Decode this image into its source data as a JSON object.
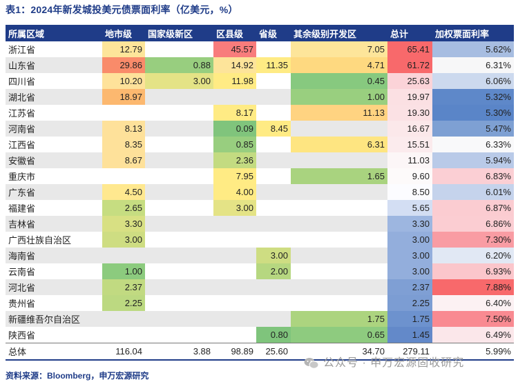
{
  "title": "表1：2024年新发城投美元债票面利率（亿美元，%）",
  "columns": [
    "所属区域",
    "地市级",
    "国家级新区",
    "区县级",
    "省级",
    "其余级别开发区",
    "总计",
    "加权票面利率"
  ],
  "rows": [
    {
      "cells": [
        "浙江省",
        "12.79",
        "",
        "45.57",
        "",
        "7.05",
        "65.41",
        "5.62%"
      ],
      "bg": [
        "",
        "#fde59a",
        "",
        "#f87c7c",
        "",
        "#fde59a",
        "#f8696b",
        "#a7bde1"
      ]
    },
    {
      "cells": [
        "山东省",
        "29.86",
        "0.88",
        "14.92",
        "11.35",
        "4.71",
        "61.72",
        "6.31%"
      ],
      "bg": [
        "",
        "#f98b6a",
        "#98ce7f",
        "#fde49a",
        "#ffeb84",
        "#fed980",
        "#f8696b",
        "#f7f7f8"
      ]
    },
    {
      "cells": [
        "四川省",
        "10.20",
        "3.00",
        "11.98",
        "",
        "0.45",
        "25.63",
        "6.06%"
      ],
      "bg": [
        "",
        "#fee29a",
        "#e4e386",
        "#ffeb84",
        "",
        "#87c97f",
        "#fbd3d8",
        "#ccd9ee"
      ]
    },
    {
      "cells": [
        "湖北省",
        "18.97",
        "",
        "",
        "",
        "1.00",
        "19.97",
        "5.32%"
      ],
      "bg": [
        "",
        "#fcb86f",
        "",
        "",
        "",
        "#99cf7f",
        "#fbe0e3",
        "#5e88c9"
      ]
    },
    {
      "cells": [
        "江苏省",
        "",
        "",
        "8.17",
        "",
        "11.13",
        "19.30",
        "5.30%"
      ],
      "bg": [
        "",
        "",
        "",
        "#ffeb84",
        "",
        "#ffd381",
        "#fbe1e4",
        "#5a85c8"
      ]
    },
    {
      "cells": [
        "河南省",
        "8.13",
        "",
        "0.09",
        "8.45",
        "",
        "16.67",
        "5.47%"
      ],
      "bg": [
        "",
        "#fee19a",
        "",
        "#80c47c",
        "#ffeb84",
        "",
        "#fbe8ea",
        "#7ea0d3"
      ]
    },
    {
      "cells": [
        "江西省",
        "8.35",
        "",
        "0.85",
        "",
        "6.31",
        "15.51",
        "6.33%"
      ],
      "bg": [
        "",
        "#fee19a",
        "",
        "#98ce7f",
        "",
        "#fee581",
        "#fbebed",
        "#f9f9fa"
      ]
    },
    {
      "cells": [
        "安徽省",
        "8.67",
        "",
        "2.36",
        "",
        "",
        "11.03",
        "5.94%"
      ],
      "bg": [
        "",
        "#fee19a",
        "",
        "#c3db81",
        "",
        "",
        "#fcf6f7",
        "#b9cae8"
      ]
    },
    {
      "cells": [
        "重庆市",
        "",
        "",
        "7.95",
        "",
        "1.65",
        "9.60",
        "6.83%"
      ],
      "bg": [
        "",
        "",
        "",
        "#ffeb84",
        "",
        "#a9d37f",
        "#fdfafa",
        "#fbcfd4"
      ]
    },
    {
      "cells": [
        "广东省",
        "4.50",
        "",
        "4.00",
        "",
        "",
        "8.50",
        "6.01%"
      ],
      "bg": [
        "",
        "#ffe88f",
        "",
        "#ffeb84",
        "",
        "",
        "#fcfcff",
        "#c5d3ec"
      ]
    },
    {
      "cells": [
        "福建省",
        "2.65",
        "",
        "3.00",
        "",
        "",
        "5.65",
        "6.87%"
      ],
      "bg": [
        "",
        "#c6dd81",
        "",
        "#e4e386",
        "",
        "",
        "#d3def3",
        "#fbccd1"
      ]
    },
    {
      "cells": [
        "吉林省",
        "3.30",
        "",
        "",
        "",
        "",
        "3.30",
        "6.86%"
      ],
      "bg": [
        "",
        "#d8e083",
        "",
        "",
        "",
        "",
        "#9db6e0",
        "#fbcdd2"
      ]
    },
    {
      "cells": [
        "广西壮族自治区",
        "3.00",
        "",
        "",
        "",
        "",
        "3.00",
        "7.30%"
      ],
      "bg": [
        "",
        "#cedd82",
        "",
        "",
        "",
        "",
        "#93aedc",
        "#f99ca3"
      ]
    },
    {
      "cells": [
        "海南省",
        "",
        "",
        "",
        "3.00",
        "",
        "3.00",
        "6.20%"
      ],
      "bg": [
        "",
        "",
        "",
        "",
        "#cedd82",
        "",
        "#93aedc",
        "#e1e8f4"
      ]
    },
    {
      "cells": [
        "云南省",
        "1.00",
        "",
        "",
        "2.00",
        "",
        "3.00",
        "6.93%"
      ],
      "bg": [
        "",
        "#8ccb7e",
        "",
        "",
        "#b6d780",
        "",
        "#93aedc",
        "#fbc6cb"
      ]
    },
    {
      "cells": [
        "河北省",
        "2.37",
        "",
        "",
        "",
        "",
        "2.37",
        "7.88%"
      ],
      "bg": [
        "",
        "#c1da81",
        "",
        "",
        "",
        "",
        "#7f9fd4",
        "#f8696b"
      ]
    },
    {
      "cells": [
        "贵州省",
        "2.25",
        "",
        "",
        "",
        "",
        "2.25",
        "6.40%"
      ],
      "bg": [
        "",
        "#bcd981",
        "",
        "",
        "",
        "",
        "#7c9dd3",
        "#fcf1f3"
      ]
    },
    {
      "cells": [
        "新疆维吾尔自治区",
        "",
        "",
        "",
        "",
        "1.75",
        "1.75",
        "7.50%"
      ],
      "bg": [
        "",
        "",
        "",
        "",
        "",
        "#acd47f",
        "#6d92ce",
        "#f98a91"
      ]
    },
    {
      "cells": [
        "陕西省",
        "",
        "",
        "",
        "0.80",
        "0.65",
        "1.45",
        "6.49%"
      ],
      "bg": [
        "",
        "",
        "",
        "",
        "#7fc47c",
        "#8ecb7f",
        "#6389c9",
        "#fbe7ea"
      ]
    }
  ],
  "total": [
    "总体",
    "116.04",
    "3.88",
    "98.89",
    "25.60",
    "34.70",
    "279.11",
    "5.99%"
  ],
  "footer": "资料来源：Bloomberg，申万宏源研究",
  "watermark": "公众号 · 申万宏源固收研究",
  "colors": {
    "header_bg": "#1f3c88",
    "accent_text": "#1f3c88",
    "alt_row": "#e8e8e8"
  }
}
